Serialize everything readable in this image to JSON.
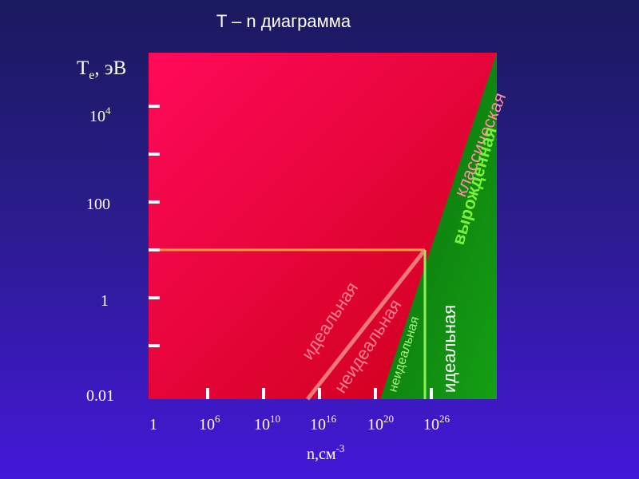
{
  "title": "T – n  диаграмма",
  "y_axis": {
    "label_main": "T",
    "label_sub": "e",
    "label_rest": ", эВ",
    "ticks": [
      {
        "base": "0.01",
        "exp": ""
      },
      {
        "base": "1",
        "exp": ""
      },
      {
        "base": "100",
        "exp": ""
      },
      {
        "base": "10",
        "exp": "4"
      }
    ]
  },
  "x_axis": {
    "label_main": "n,см",
    "label_exp": "-3",
    "ticks": [
      {
        "base": "1",
        "exp": ""
      },
      {
        "base": "10",
        "exp": "6"
      },
      {
        "base": "10",
        "exp": "10"
      },
      {
        "base": "10",
        "exp": "16"
      },
      {
        "base": "10",
        "exp": "20"
      },
      {
        "base": "10",
        "exp": "26"
      }
    ]
  },
  "regions": {
    "classical": "классическая",
    "degenerate": "вырожденная",
    "ideal_classical": "идеальная",
    "nonideal_classical": "неидеальная",
    "nonideal_degenerate": "неидеальная",
    "ideal_degenerate": "идеальная"
  },
  "colors": {
    "classical_fill": "#e8103c",
    "degenerate_fill": "#0a7a0a",
    "boundary_line": "#f06a6a",
    "horizontal_line": "#ff9a3c",
    "vertical_line": "#8ef05a",
    "degenerate_text": "#7cf03a",
    "classical_text": "#ff8fa0"
  }
}
